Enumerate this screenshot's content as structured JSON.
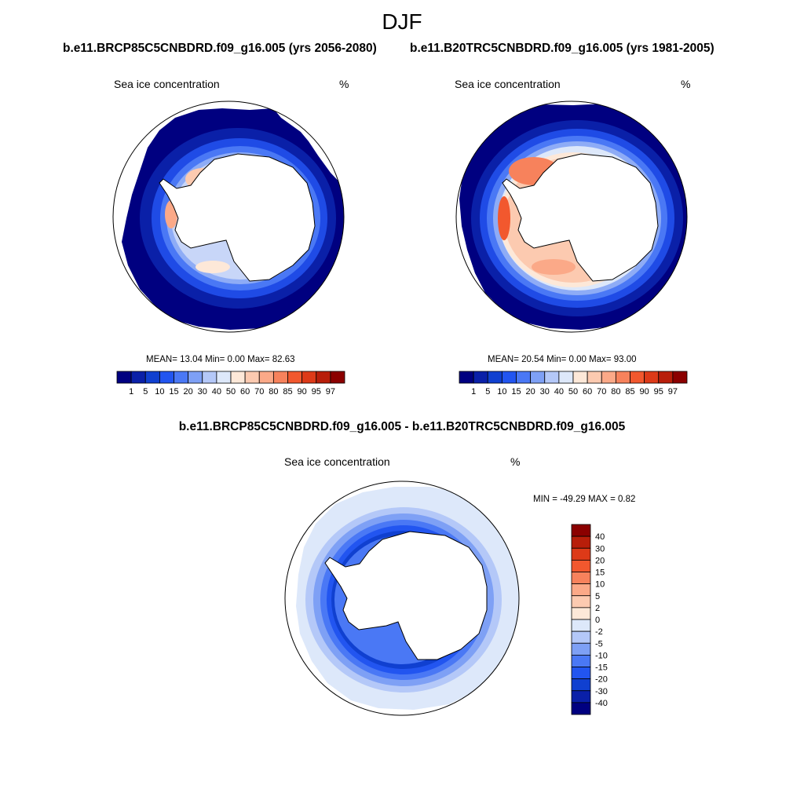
{
  "title": "DJF",
  "panels": [
    {
      "subtitle": "b.e11.BRCP85C5CNBDRD.f09_g16.005 (yrs 2056-2080)",
      "left_label": "Sea ice concentration",
      "right_label": "%",
      "stats": "MEAN=  13.04  Min=    0.00  Max=  82.63"
    },
    {
      "subtitle": "b.e11.B20TRC5CNBDRD.f09_g16.005 (yrs 1981-2005)",
      "left_label": "Sea ice concentration",
      "right_label": "%",
      "stats": "MEAN=  20.54  Min=    0.00  Max=  93.00"
    }
  ],
  "diff": {
    "subtitle": "b.e11.BRCP85C5CNBDRD.f09_g16.005 - b.e11.B20TRC5CNBDRD.f09_g16.005",
    "left_label": "Sea ice concentration",
    "right_label": "%",
    "minmax": "MIN = -49.29 MAX =   0.82"
  },
  "abs_colorbar": {
    "ticks": [
      "1",
      "5",
      "10",
      "15",
      "20",
      "30",
      "40",
      "50",
      "60",
      "70",
      "80",
      "85",
      "90",
      "95",
      "97"
    ],
    "colors": [
      "#000080",
      "#0a20a8",
      "#1040d0",
      "#2255f0",
      "#4a78f5",
      "#7ea0f5",
      "#b4c8f8",
      "#dde8fa",
      "#fde8d8",
      "#fccab0",
      "#fba988",
      "#f7825c",
      "#f2582e",
      "#dd3a18",
      "#b81e0a",
      "#8b0000"
    ]
  },
  "diff_colorbar": {
    "labels": [
      "40",
      "30",
      "20",
      "15",
      "10",
      "5",
      "2",
      "0",
      "-2",
      "-5",
      "-10",
      "-15",
      "-20",
      "-30",
      "-40"
    ],
    "colors": [
      "#8b0000",
      "#b81e0a",
      "#dd3a18",
      "#f2582e",
      "#f7825c",
      "#fba988",
      "#fccab0",
      "#fde8d8",
      "#dde8fa",
      "#b4c8f8",
      "#7ea0f5",
      "#4a78f5",
      "#2255f0",
      "#1040d0",
      "#0a20a8",
      "#000080"
    ]
  }
}
